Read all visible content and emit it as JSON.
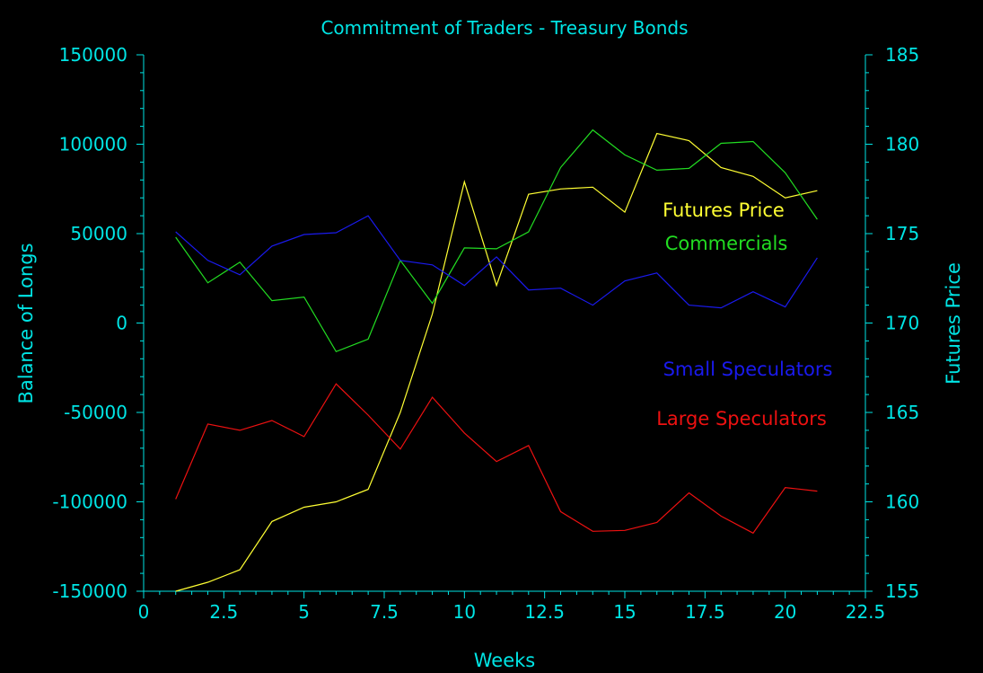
{
  "chart_data": {
    "type": "line",
    "title": "Commitment of Traders - Treasury Bonds",
    "xlabel": "Weeks",
    "ylabel_left": "Balance of Longs",
    "ylabel_right": "Futures Price",
    "xlim": [
      0,
      22.5
    ],
    "ylim_left": [
      -150000,
      150000
    ],
    "ylim_right": [
      155,
      185
    ],
    "x_ticks": [
      "0",
      "2.5",
      "5",
      "7.5",
      "10",
      "12.5",
      "15",
      "17.5",
      "20",
      "22.5"
    ],
    "y_left_ticks": [
      "150000",
      "100000",
      "50000",
      "0",
      "-50000",
      "-100000",
      "-150000"
    ],
    "y_right_ticks": [
      "185",
      "180",
      "175",
      "170",
      "165",
      "160",
      "155"
    ],
    "grid": false,
    "legend": "inline labels, right",
    "colors": {
      "background": "#000000",
      "axis": "#00e5e5",
      "futures_price": "#ffff33",
      "commercials": "#22dd22",
      "small_speculators": "#1a1aee",
      "large_speculators": "#ee1111"
    },
    "x": [
      1,
      2,
      3,
      4,
      5,
      6,
      7,
      8,
      9,
      10,
      11,
      12,
      13,
      14,
      15,
      16,
      17,
      18,
      19,
      20,
      21
    ],
    "series": [
      {
        "name": "Futures Price",
        "axis": "right",
        "color_key": "futures_price",
        "values": [
          155.0,
          155.5,
          156.2,
          158.9,
          159.7,
          160.0,
          160.7,
          165.0,
          170.5,
          177.9,
          172.1,
          177.2,
          177.5,
          177.6,
          176.2,
          180.6,
          180.2,
          178.7,
          178.2,
          177.0,
          177.4
        ]
      },
      {
        "name": "Commercials",
        "axis": "left",
        "color_key": "commercials",
        "values": [
          48000,
          22500,
          34000,
          12500,
          14500,
          -16000,
          -9000,
          35000,
          11000,
          42000,
          41500,
          51000,
          87000,
          108000,
          94000,
          85500,
          86500,
          100500,
          101500,
          84000,
          58000
        ]
      },
      {
        "name": "Small Speculators",
        "axis": "left",
        "color_key": "small_speculators",
        "values": [
          51000,
          35000,
          27000,
          43000,
          49500,
          50500,
          60000,
          35000,
          32500,
          21000,
          37000,
          18500,
          19500,
          10000,
          23500,
          28000,
          10000,
          8500,
          17500,
          9000,
          36500
        ]
      },
      {
        "name": "Large Speculators",
        "axis": "left",
        "color_key": "large_speculators",
        "values": [
          -98500,
          -56500,
          -60000,
          -54500,
          -63500,
          -34000,
          -51500,
          -70500,
          -41500,
          -61500,
          -77500,
          -68500,
          -105500,
          -116500,
          -116000,
          -111500,
          -95000,
          -108000,
          -117500,
          -92000,
          -94000
        ]
      }
    ]
  }
}
